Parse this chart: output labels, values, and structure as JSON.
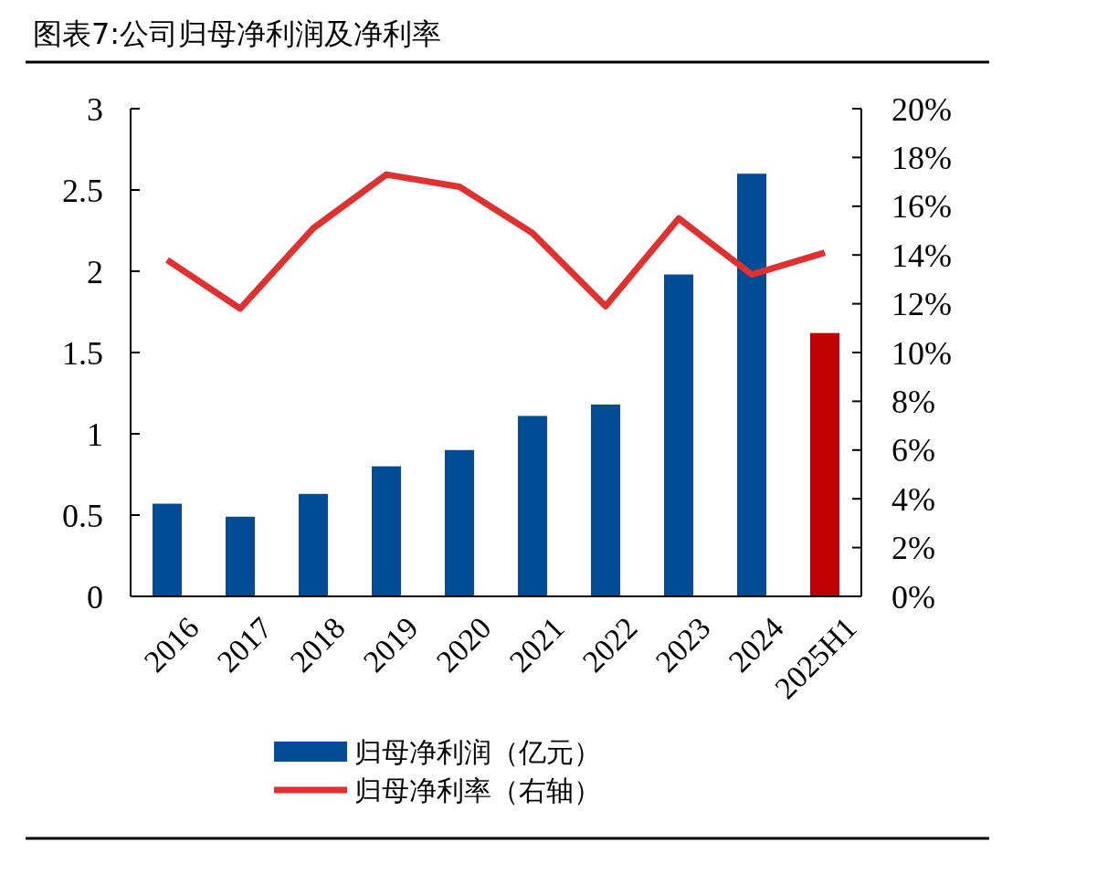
{
  "chart_data": {
    "type": "bar",
    "title": "图表7:公司归母净利润及净利率",
    "categories": [
      "2016",
      "2017",
      "2018",
      "2019",
      "2020",
      "2021",
      "2022",
      "2023",
      "2024",
      "2025H1"
    ],
    "series": [
      {
        "name": "归母净利润（亿元）",
        "color": "#004c97",
        "colors": [
          "#004c97",
          "#004c97",
          "#004c97",
          "#004c97",
          "#004c97",
          "#004c97",
          "#004c97",
          "#004c97",
          "#004c97",
          "#c00000"
        ],
        "values": [
          0.57,
          0.49,
          0.63,
          0.8,
          0.9,
          1.11,
          1.18,
          1.98,
          2.6,
          1.62
        ]
      },
      {
        "name": "归母净利率（右轴）",
        "type": "line",
        "axis": "y2",
        "color": "#e03030",
        "values": [
          13.8,
          11.8,
          15.1,
          17.3,
          16.8,
          14.9,
          11.9,
          15.5,
          13.2,
          14.1
        ]
      }
    ],
    "ylim": [
      0,
      3
    ],
    "yticks": [
      0,
      {
        "value": 0.5,
        "label": "0.5"
      },
      1,
      {
        "value": 1.5,
        "label": "1.5"
      },
      2,
      {
        "value": 2.5,
        "label": "2.5"
      },
      3
    ],
    "y2lim": [
      0,
      20
    ],
    "y2ticks": [
      {
        "value": 0,
        "label": "0%"
      },
      {
        "value": 2,
        "label": "2%"
      },
      {
        "value": 4,
        "label": "4%"
      },
      {
        "value": 6,
        "label": "6%"
      },
      {
        "value": 8,
        "label": "8%"
      },
      {
        "value": 10,
        "label": "10%"
      },
      {
        "value": 12,
        "label": "12%"
      },
      {
        "value": 14,
        "label": "14%"
      },
      {
        "value": 16,
        "label": "16%"
      },
      {
        "value": 18,
        "label": "18%"
      },
      {
        "value": 20,
        "label": "20%"
      }
    ],
    "legend": "bottom",
    "grid": false
  }
}
